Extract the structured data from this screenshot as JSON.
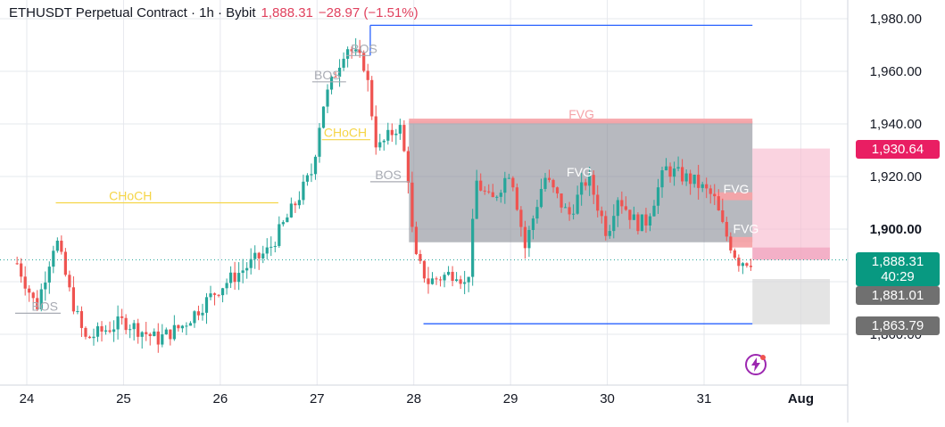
{
  "header": {
    "symbol": "ETHUSDT Perpetual Contract · 1h · Bybit",
    "price": "1,888.31",
    "change": "−28.97 (−1.51%)"
  },
  "colors": {
    "up": "#26a69a",
    "down": "#ef5350",
    "grid": "#e6e8ee",
    "level_line": "#2962ff",
    "choch": "#f5d547",
    "zone_grey": "#878a94",
    "zone_red": "#f5a3a8",
    "zone_pink": "#f8bbd0",
    "zone_lightgrey": "#d9d9d9",
    "tag_last": "#089981",
    "tag_red": "#e91e63",
    "tag_grey": "#707070"
  },
  "price_tags": {
    "last_price": "1,888.31",
    "countdown": "40:29",
    "pink_top": "1,930.64",
    "grey_mid": "1,881.01",
    "grey_low": "1,863.79"
  },
  "chart_data": {
    "type": "candlestick",
    "title": "ETHUSDT Perpetual Contract · 1h · Bybit",
    "y_axis": {
      "ticks": [
        1860,
        1880,
        1900,
        1920,
        1940,
        1960,
        1980
      ],
      "tick_labels": [
        "1,860.00",
        "1,880.00",
        "1,900.00",
        "1,920.00",
        "1,940.00",
        "1,960.00",
        "1,980.00"
      ],
      "range": [
        1850,
        1985
      ],
      "bold_tick": 1900
    },
    "x_axis": {
      "tick_labels": [
        "24",
        "25",
        "26",
        "27",
        "28",
        "29",
        "30",
        "31",
        "Aug"
      ],
      "tick_days": [
        0,
        1,
        2,
        3,
        4,
        5,
        6,
        7,
        8
      ],
      "range_days": [
        -0.12,
        8.5
      ]
    },
    "grid": true,
    "last_price_line": 1888.31,
    "key_points": [
      {
        "day": -0.1,
        "price": 1887
      },
      {
        "day": 0.1,
        "price": 1870
      },
      {
        "day": 0.3,
        "price": 1897
      },
      {
        "day": 0.45,
        "price": 1875
      },
      {
        "day": 0.6,
        "price": 1858
      },
      {
        "day": 1.0,
        "price": 1865
      },
      {
        "day": 1.35,
        "price": 1858
      },
      {
        "day": 1.6,
        "price": 1863
      },
      {
        "day": 2.0,
        "price": 1878
      },
      {
        "day": 2.5,
        "price": 1892
      },
      {
        "day": 2.75,
        "price": 1908
      },
      {
        "day": 2.95,
        "price": 1922
      },
      {
        "day": 3.05,
        "price": 1946
      },
      {
        "day": 3.3,
        "price": 1970
      },
      {
        "day": 3.5,
        "price": 1962
      },
      {
        "day": 3.62,
        "price": 1930
      },
      {
        "day": 3.85,
        "price": 1940
      },
      {
        "day": 3.95,
        "price": 1918
      },
      {
        "day": 4.0,
        "price": 1890
      },
      {
        "day": 4.15,
        "price": 1880
      },
      {
        "day": 4.45,
        "price": 1884
      },
      {
        "day": 4.55,
        "price": 1877
      },
      {
        "day": 4.65,
        "price": 1918
      },
      {
        "day": 4.8,
        "price": 1910
      },
      {
        "day": 5.0,
        "price": 1923
      },
      {
        "day": 5.15,
        "price": 1893
      },
      {
        "day": 5.35,
        "price": 1920
      },
      {
        "day": 5.6,
        "price": 1905
      },
      {
        "day": 5.8,
        "price": 1920
      },
      {
        "day": 6.0,
        "price": 1898
      },
      {
        "day": 6.1,
        "price": 1913
      },
      {
        "day": 6.3,
        "price": 1902
      },
      {
        "day": 6.4,
        "price": 1903
      },
      {
        "day": 6.6,
        "price": 1923
      },
      {
        "day": 6.9,
        "price": 1918
      },
      {
        "day": 7.1,
        "price": 1912
      },
      {
        "day": 7.2,
        "price": 1900
      },
      {
        "day": 7.35,
        "price": 1888
      },
      {
        "day": 7.5,
        "price": 1888
      }
    ],
    "levels": [
      {
        "kind": "line",
        "price": 1977.5,
        "day_start": 3.55,
        "day_end": 7.5
      },
      {
        "kind": "line",
        "price": 1864,
        "day_start": 4.1,
        "day_end": 7.5
      }
    ],
    "zones": [
      {
        "kind": "grey",
        "price_top": 1941,
        "price_bottom": 1895,
        "day_start": 3.95,
        "day_end": 7.5
      },
      {
        "kind": "red",
        "price_top": 1942,
        "price_bottom": 1940.2,
        "day_start": 3.95,
        "day_end": 7.5
      },
      {
        "kind": "red",
        "price_top": 1914,
        "price_bottom": 1911,
        "day_start": 7.12,
        "day_end": 7.5
      },
      {
        "kind": "red",
        "price_top": 1897,
        "price_bottom": 1893,
        "day_start": 7.27,
        "day_end": 7.5
      },
      {
        "kind": "pink",
        "price_top": 1930.64,
        "price_bottom": 1888.31,
        "day_start": 7.5,
        "day_end": 8.3
      },
      {
        "kind": "lightgrey",
        "price_top": 1881.01,
        "price_bottom": 1863.79,
        "day_start": 7.5,
        "day_end": 8.3
      }
    ],
    "annotations": [
      {
        "text": "CHoCH",
        "price": 1910,
        "day_start": 0.3,
        "day_end": 2.6,
        "color": "choch",
        "label_day": 0.85
      },
      {
        "text": "CHoCH",
        "price": 1934,
        "day_start": 3.05,
        "day_end": 3.55,
        "color": "choch",
        "label_day": 3.07
      },
      {
        "text": "BOS",
        "price": 1956,
        "day_start": 2.95,
        "day_end": 3.3,
        "color": "bos",
        "label_day": 2.97
      },
      {
        "text": "BOS",
        "price": 1966,
        "day_start": 3.3,
        "day_end": 3.55,
        "color": "bos",
        "label_day": 3.35
      },
      {
        "text": "BOS",
        "price": 1918,
        "day_start": 3.55,
        "day_end": 3.95,
        "color": "bos",
        "label_day": 3.6
      },
      {
        "text": "BOS",
        "price": 1868,
        "day_start": -0.12,
        "day_end": 0.35,
        "color": "bos",
        "label_day": 0.05
      },
      {
        "text": "FVG",
        "price": 1941,
        "day_start": 3.95,
        "day_end": 7.5,
        "color": "fvg",
        "label_day": 5.6
      },
      {
        "text": "FVG",
        "price": 1919,
        "day_start": 5.55,
        "day_end": 5.9,
        "color": "fvgw",
        "label_day": 5.58
      },
      {
        "text": "FVG",
        "price": 1912.5,
        "day_start": 7.12,
        "day_end": 7.5,
        "color": "fvgw",
        "label_day": 7.2
      },
      {
        "text": "FVG",
        "price": 1897.5,
        "day_start": 7.27,
        "day_end": 7.5,
        "color": "fvgw",
        "label_day": 7.3
      }
    ]
  }
}
